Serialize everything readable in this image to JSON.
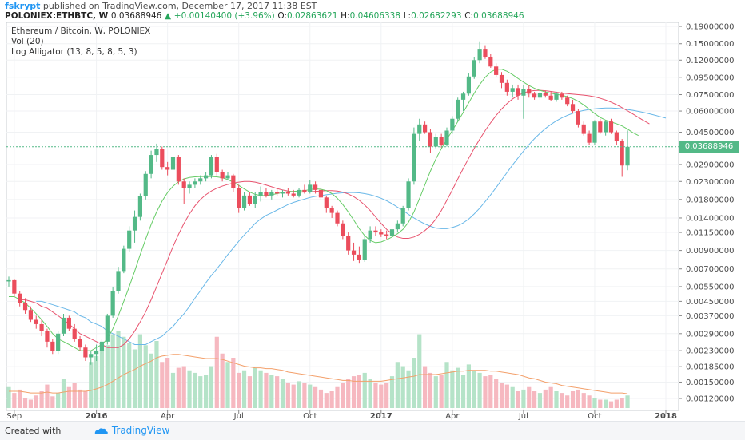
{
  "header": {
    "user": "fskrypt",
    "published_text": "published on TradingView.com, December 17, 2017 11:38 EST",
    "symbol": "POLONIEX:ETHBTC, W",
    "last": "0.03688946",
    "change": "+0.00140400 (+3.96%)",
    "open_label": "O:",
    "open": "0.02863621",
    "high_label": "H:",
    "high": "0.04606338",
    "low_label": "L:",
    "low": "0.02682293",
    "close_label": "C:",
    "close": "0.03688946"
  },
  "legend": {
    "title": "Ethereum / Bitcoin, W, POLONIEX",
    "vol": "Vol (20)",
    "alligator": "Log Alligator (13, 8, 5, 8, 5, 3)"
  },
  "price_tag": "0.03688946",
  "footer": {
    "created": "Created with",
    "brand": "TradingView"
  },
  "colors": {
    "up": "#53b987",
    "down": "#eb4d5c",
    "jaw": "#6ab8e8",
    "teeth": "#e8536e",
    "lips": "#66cc66",
    "vol_ma": "#f3a06b"
  },
  "chart_data": {
    "type": "candlestick",
    "scale": "log",
    "y_ticks": [
      "0.19000000",
      "0.15000000",
      "0.12000000",
      "0.09500000",
      "0.07500000",
      "0.06000000",
      "0.04500000",
      "0.03688946",
      "0.02900000",
      "0.02300000",
      "0.01800000",
      "0.01400000",
      "0.01150000",
      "0.00900000",
      "0.00700000",
      "0.00550000",
      "0.00450000",
      "0.00370000",
      "0.00290000",
      "0.00230000",
      "0.00185000",
      "0.00150000",
      "0.00120000"
    ],
    "y_tick_values": [
      0.19,
      0.15,
      0.12,
      0.095,
      0.075,
      0.06,
      0.045,
      0.03688946,
      0.029,
      0.023,
      0.018,
      0.014,
      0.0115,
      0.009,
      0.007,
      0.0055,
      0.0045,
      0.0037,
      0.0029,
      0.0023,
      0.00185,
      0.0015,
      0.0012
    ],
    "x_labels": [
      "Sep",
      "2016",
      "Apr",
      "Jul",
      "Oct",
      "2017",
      "Apr",
      "Jul",
      "Oct",
      "2018"
    ],
    "x_label_index": [
      1,
      16,
      29,
      42,
      55,
      68,
      81,
      94,
      107,
      120
    ],
    "ohlc": [
      [
        0.0059,
        0.0063,
        0.0055,
        0.006
      ],
      [
        0.006,
        0.0061,
        0.0048,
        0.005
      ],
      [
        0.005,
        0.0052,
        0.0042,
        0.0044
      ],
      [
        0.0044,
        0.0047,
        0.0038,
        0.004
      ],
      [
        0.004,
        0.0042,
        0.0034,
        0.0035
      ],
      [
        0.0035,
        0.0037,
        0.0031,
        0.0033
      ],
      [
        0.0033,
        0.0035,
        0.0028,
        0.003
      ],
      [
        0.003,
        0.0031,
        0.0024,
        0.0026
      ],
      [
        0.0026,
        0.0027,
        0.0022,
        0.0023
      ],
      [
        0.0023,
        0.003,
        0.0022,
        0.0029
      ],
      [
        0.0029,
        0.0038,
        0.0028,
        0.0036
      ],
      [
        0.0036,
        0.0037,
        0.003,
        0.0031
      ],
      [
        0.0031,
        0.0033,
        0.0026,
        0.0027
      ],
      [
        0.0027,
        0.0028,
        0.0023,
        0.0024
      ],
      [
        0.0024,
        0.0025,
        0.002,
        0.0021
      ],
      [
        0.0021,
        0.0023,
        0.0019,
        0.0022
      ],
      [
        0.0022,
        0.0025,
        0.002,
        0.0023
      ],
      [
        0.0023,
        0.0027,
        0.0022,
        0.0026
      ],
      [
        0.0026,
        0.0038,
        0.0025,
        0.0037
      ],
      [
        0.0037,
        0.0055,
        0.0036,
        0.0052
      ],
      [
        0.0052,
        0.0072,
        0.005,
        0.0068
      ],
      [
        0.0068,
        0.0096,
        0.0066,
        0.0092
      ],
      [
        0.0092,
        0.0125,
        0.0088,
        0.0118
      ],
      [
        0.0118,
        0.0155,
        0.01,
        0.0142
      ],
      [
        0.0142,
        0.0195,
        0.0135,
        0.0188
      ],
      [
        0.0188,
        0.0265,
        0.018,
        0.0255
      ],
      [
        0.0255,
        0.035,
        0.024,
        0.033
      ],
      [
        0.033,
        0.0385,
        0.03,
        0.036
      ],
      [
        0.036,
        0.037,
        0.027,
        0.028
      ],
      [
        0.028,
        0.03,
        0.025,
        0.027
      ],
      [
        0.027,
        0.033,
        0.026,
        0.032
      ],
      [
        0.032,
        0.033,
        0.022,
        0.023
      ],
      [
        0.023,
        0.024,
        0.017,
        0.021
      ],
      [
        0.021,
        0.023,
        0.0195,
        0.022
      ],
      [
        0.022,
        0.024,
        0.021,
        0.023
      ],
      [
        0.023,
        0.025,
        0.022,
        0.024
      ],
      [
        0.024,
        0.026,
        0.023,
        0.025
      ],
      [
        0.025,
        0.033,
        0.024,
        0.032
      ],
      [
        0.032,
        0.0335,
        0.025,
        0.026
      ],
      [
        0.026,
        0.027,
        0.023,
        0.024
      ],
      [
        0.024,
        0.026,
        0.0235,
        0.025
      ],
      [
        0.025,
        0.0255,
        0.02,
        0.021
      ],
      [
        0.021,
        0.022,
        0.015,
        0.016
      ],
      [
        0.016,
        0.02,
        0.0155,
        0.019
      ],
      [
        0.019,
        0.02,
        0.0165,
        0.017
      ],
      [
        0.017,
        0.02,
        0.016,
        0.019
      ],
      [
        0.019,
        0.0215,
        0.0175,
        0.02
      ],
      [
        0.02,
        0.021,
        0.0185,
        0.019
      ],
      [
        0.019,
        0.0205,
        0.018,
        0.02
      ],
      [
        0.02,
        0.021,
        0.019,
        0.0195
      ],
      [
        0.0195,
        0.0205,
        0.0185,
        0.02
      ],
      [
        0.02,
        0.021,
        0.019,
        0.0195
      ],
      [
        0.0195,
        0.0205,
        0.0185,
        0.019
      ],
      [
        0.019,
        0.021,
        0.0185,
        0.0205
      ],
      [
        0.0205,
        0.022,
        0.0195,
        0.02
      ],
      [
        0.02,
        0.0235,
        0.0195,
        0.022
      ],
      [
        0.022,
        0.023,
        0.0195,
        0.0205
      ],
      [
        0.0205,
        0.021,
        0.018,
        0.0185
      ],
      [
        0.0185,
        0.019,
        0.015,
        0.016
      ],
      [
        0.016,
        0.0165,
        0.014,
        0.015
      ],
      [
        0.015,
        0.0155,
        0.0125,
        0.013
      ],
      [
        0.013,
        0.0135,
        0.0105,
        0.011
      ],
      [
        0.011,
        0.0115,
        0.0085,
        0.009
      ],
      [
        0.009,
        0.01,
        0.0078,
        0.0085
      ],
      [
        0.0085,
        0.0095,
        0.0076,
        0.0079
      ],
      [
        0.0079,
        0.011,
        0.0077,
        0.0105
      ],
      [
        0.0105,
        0.0125,
        0.01,
        0.0118
      ],
      [
        0.0118,
        0.0125,
        0.011,
        0.0115
      ],
      [
        0.0115,
        0.012,
        0.0108,
        0.0112
      ],
      [
        0.0112,
        0.0118,
        0.0105,
        0.011
      ],
      [
        0.011,
        0.0123,
        0.0108,
        0.012
      ],
      [
        0.012,
        0.0135,
        0.0115,
        0.013
      ],
      [
        0.013,
        0.0165,
        0.0125,
        0.016
      ],
      [
        0.016,
        0.024,
        0.0155,
        0.023
      ],
      [
        0.023,
        0.048,
        0.022,
        0.044
      ],
      [
        0.044,
        0.054,
        0.04,
        0.05
      ],
      [
        0.05,
        0.052,
        0.044,
        0.045
      ],
      [
        0.045,
        0.047,
        0.034,
        0.037
      ],
      [
        0.037,
        0.044,
        0.036,
        0.042
      ],
      [
        0.042,
        0.044,
        0.0365,
        0.038
      ],
      [
        0.038,
        0.048,
        0.037,
        0.046
      ],
      [
        0.046,
        0.056,
        0.044,
        0.054
      ],
      [
        0.054,
        0.072,
        0.052,
        0.07
      ],
      [
        0.07,
        0.078,
        0.06,
        0.076
      ],
      [
        0.076,
        0.1,
        0.074,
        0.096
      ],
      [
        0.096,
        0.125,
        0.093,
        0.12
      ],
      [
        0.12,
        0.155,
        0.115,
        0.14
      ],
      [
        0.14,
        0.147,
        0.122,
        0.125
      ],
      [
        0.125,
        0.13,
        0.108,
        0.11
      ],
      [
        0.11,
        0.115,
        0.095,
        0.098
      ],
      [
        0.098,
        0.102,
        0.082,
        0.088
      ],
      [
        0.088,
        0.092,
        0.074,
        0.078
      ],
      [
        0.078,
        0.086,
        0.072,
        0.082
      ],
      [
        0.082,
        0.086,
        0.07,
        0.074
      ],
      [
        0.074,
        0.086,
        0.054,
        0.081
      ],
      [
        0.081,
        0.085,
        0.072,
        0.076
      ],
      [
        0.076,
        0.078,
        0.07,
        0.072
      ],
      [
        0.072,
        0.079,
        0.07,
        0.077
      ],
      [
        0.077,
        0.079,
        0.072,
        0.074
      ],
      [
        0.074,
        0.078,
        0.069,
        0.07
      ],
      [
        0.07,
        0.078,
        0.068,
        0.076
      ],
      [
        0.076,
        0.078,
        0.07,
        0.072
      ],
      [
        0.072,
        0.074,
        0.064,
        0.066
      ],
      [
        0.066,
        0.07,
        0.058,
        0.06
      ],
      [
        0.06,
        0.062,
        0.048,
        0.05
      ],
      [
        0.05,
        0.052,
        0.043,
        0.044
      ],
      [
        0.044,
        0.046,
        0.038,
        0.039
      ],
      [
        0.039,
        0.053,
        0.038,
        0.052
      ],
      [
        0.052,
        0.054,
        0.044,
        0.045
      ],
      [
        0.045,
        0.053,
        0.043,
        0.052
      ],
      [
        0.052,
        0.054,
        0.044,
        0.045
      ],
      [
        0.045,
        0.046,
        0.038,
        0.04
      ],
      [
        0.04,
        0.041,
        0.0245,
        0.0286
      ],
      [
        0.0286,
        0.0461,
        0.0268,
        0.0369
      ]
    ],
    "jaw": [
      0.0045,
      0.0045,
      0.0044,
      0.0043,
      0.0042,
      0.0041,
      0.004,
      0.0039,
      0.0037,
      0.0036,
      0.0034,
      0.0033,
      0.0032,
      0.003,
      0.0029,
      0.0028,
      0.0027,
      0.0026,
      0.0025,
      0.0025,
      0.0025,
      0.0026,
      0.0027,
      0.0028,
      0.003,
      0.0032,
      0.0035,
      0.0038,
      0.0042,
      0.0047,
      0.0052,
      0.0058,
      0.0064,
      0.007,
      0.0077,
      0.0085,
      0.0093,
      0.0102,
      0.0111,
      0.012,
      0.013,
      0.0138,
      0.0145,
      0.015,
      0.0156,
      0.0162,
      0.0168,
      0.0173,
      0.0177,
      0.0181,
      0.0185,
      0.0188,
      0.019,
      0.0192,
      0.0194,
      0.0196,
      0.0197,
      0.0198,
      0.0198,
      0.0197,
      0.0195,
      0.0192,
      0.0188,
      0.0183,
      0.0177,
      0.017,
      0.0162,
      0.0155,
      0.0147,
      0.014,
      0.0134,
      0.0129,
      0.0125,
      0.0122,
      0.0121,
      0.0121,
      0.0123,
      0.0126,
      0.0131,
      0.0138,
      0.0148,
      0.016,
      0.0175,
      0.0192,
      0.0212,
      0.0235,
      0.026,
      0.0288,
      0.0317,
      0.0348,
      0.038,
      0.0412,
      0.0443,
      0.0473,
      0.05,
      0.0525,
      0.0547,
      0.0566,
      0.0582,
      0.0595,
      0.0605,
      0.0613,
      0.0619,
      0.0623,
      0.0625,
      0.0625,
      0.0623,
      0.0619,
      0.0613,
      0.0606,
      0.0597,
      0.0588,
      0.0578,
      0.0567,
      0.0556,
      0.0545
    ],
    "teeth": [
      0.0046,
      0.0046,
      0.0045,
      0.0044,
      0.0042,
      0.0041,
      0.0039,
      0.0037,
      0.0035,
      0.0033,
      0.0031,
      0.0029,
      0.0028,
      0.0027,
      0.0026,
      0.0025,
      0.0024,
      0.0024,
      0.0024,
      0.0025,
      0.0027,
      0.003,
      0.0034,
      0.0039,
      0.0046,
      0.0055,
      0.0066,
      0.0079,
      0.0095,
      0.0112,
      0.013,
      0.0148,
      0.0165,
      0.018,
      0.0192,
      0.0202,
      0.021,
      0.0216,
      0.0221,
      0.0225,
      0.0228,
      0.023,
      0.023,
      0.0228,
      0.0224,
      0.0219,
      0.0214,
      0.0209,
      0.0205,
      0.0202,
      0.02,
      0.0199,
      0.0199,
      0.02,
      0.0201,
      0.0202,
      0.0203,
      0.0203,
      0.0202,
      0.0199,
      0.0194,
      0.0187,
      0.0178,
      0.0167,
      0.0155,
      0.0142,
      0.013,
      0.012,
      0.0113,
      0.0108,
      0.0106,
      0.0106,
      0.0108,
      0.0112,
      0.0118,
      0.0126,
      0.0138,
      0.0155,
      0.0178,
      0.0205,
      0.0238,
      0.0275,
      0.0316,
      0.0361,
      0.0409,
      0.046,
      0.0512,
      0.0565,
      0.0617,
      0.0665,
      0.0707,
      0.0742,
      0.0768,
      0.0785,
      0.0793,
      0.0795,
      0.0791,
      0.0784,
      0.0775,
      0.0767,
      0.076,
      0.0755,
      0.075,
      0.0745,
      0.0738,
      0.0728,
      0.0714,
      0.0697,
      0.0677,
      0.0654,
      0.0628,
      0.0602,
      0.0576,
      0.055,
      0.0526,
      0.0504
    ],
    "lips": [
      0.0048,
      0.0048,
      0.0046,
      0.0044,
      0.0041,
      0.0038,
      0.0035,
      0.0032,
      0.0029,
      0.0027,
      0.0026,
      0.0025,
      0.0024,
      0.0023,
      0.0023,
      0.0023,
      0.0024,
      0.0025,
      0.0027,
      0.0031,
      0.0037,
      0.0045,
      0.0055,
      0.0068,
      0.0085,
      0.0105,
      0.0128,
      0.0152,
      0.0176,
      0.0198,
      0.0216,
      0.0229,
      0.0238,
      0.0243,
      0.0245,
      0.0246,
      0.0246,
      0.0246,
      0.0245,
      0.0242,
      0.0236,
      0.0228,
      0.0218,
      0.0208,
      0.0199,
      0.0193,
      0.019,
      0.019,
      0.0192,
      0.0195,
      0.0198,
      0.02,
      0.0201,
      0.0202,
      0.0203,
      0.0206,
      0.0208,
      0.0207,
      0.0203,
      0.0195,
      0.0183,
      0.0168,
      0.0152,
      0.0136,
      0.0121,
      0.011,
      0.0103,
      0.01,
      0.0101,
      0.0104,
      0.0108,
      0.0113,
      0.012,
      0.0132,
      0.0152,
      0.0182,
      0.022,
      0.0265,
      0.0313,
      0.036,
      0.0408,
      0.046,
      0.052,
      0.059,
      0.0672,
      0.0765,
      0.086,
      0.095,
      0.102,
      0.106,
      0.106,
      0.103,
      0.0985,
      0.0935,
      0.089,
      0.085,
      0.0818,
      0.0795,
      0.0778,
      0.0765,
      0.0754,
      0.0743,
      0.073,
      0.0711,
      0.0685,
      0.0652,
      0.0615,
      0.058,
      0.055,
      0.053,
      0.0517,
      0.0505,
      0.049,
      0.047,
      0.0447,
      0.043
    ],
    "volume": [
      0.25,
      0.18,
      0.22,
      0.12,
      0.1,
      0.15,
      0.2,
      0.28,
      0.14,
      0.18,
      0.35,
      0.25,
      0.3,
      0.22,
      0.2,
      0.55,
      0.62,
      0.7,
      0.75,
      0.88,
      0.92,
      0.85,
      0.78,
      0.7,
      0.88,
      0.75,
      0.65,
      0.8,
      0.55,
      0.6,
      0.42,
      0.48,
      0.5,
      0.45,
      0.42,
      0.38,
      0.4,
      0.5,
      0.85,
      0.65,
      0.55,
      0.6,
      0.42,
      0.45,
      0.38,
      0.48,
      0.45,
      0.42,
      0.4,
      0.38,
      0.35,
      0.3,
      0.28,
      0.32,
      0.3,
      0.28,
      0.25,
      0.22,
      0.18,
      0.2,
      0.25,
      0.3,
      0.35,
      0.38,
      0.4,
      0.42,
      0.35,
      0.3,
      0.28,
      0.3,
      0.38,
      0.55,
      0.5,
      0.45,
      0.6,
      0.88,
      0.5,
      0.42,
      0.38,
      0.4,
      0.55,
      0.45,
      0.48,
      0.4,
      0.52,
      0.45,
      0.42,
      0.38,
      0.4,
      0.35,
      0.3,
      0.28,
      0.25,
      0.2,
      0.22,
      0.25,
      0.2,
      0.18,
      0.22,
      0.25,
      0.2,
      0.18,
      0.15,
      0.2,
      0.22,
      0.18,
      0.15,
      0.12,
      0.1,
      0.1,
      0.08,
      0.1,
      0.12,
      0.15
    ],
    "vol_ma": [
      0.2,
      0.2,
      0.2,
      0.19,
      0.18,
      0.18,
      0.18,
      0.19,
      0.18,
      0.18,
      0.19,
      0.2,
      0.2,
      0.2,
      0.2,
      0.21,
      0.23,
      0.25,
      0.28,
      0.32,
      0.36,
      0.4,
      0.43,
      0.46,
      0.5,
      0.53,
      0.56,
      0.6,
      0.62,
      0.63,
      0.64,
      0.64,
      0.63,
      0.62,
      0.61,
      0.6,
      0.59,
      0.59,
      0.59,
      0.58,
      0.56,
      0.54,
      0.52,
      0.5,
      0.49,
      0.48,
      0.48,
      0.47,
      0.47,
      0.46,
      0.45,
      0.43,
      0.42,
      0.41,
      0.4,
      0.39,
      0.38,
      0.37,
      0.36,
      0.35,
      0.34,
      0.33,
      0.33,
      0.32,
      0.32,
      0.32,
      0.32,
      0.32,
      0.32,
      0.33,
      0.34,
      0.35,
      0.36,
      0.37,
      0.38,
      0.4,
      0.4,
      0.4,
      0.4,
      0.41,
      0.42,
      0.43,
      0.44,
      0.44,
      0.45,
      0.45,
      0.45,
      0.45,
      0.44,
      0.44,
      0.43,
      0.42,
      0.41,
      0.4,
      0.38,
      0.36,
      0.35,
      0.33,
      0.31,
      0.3,
      0.29,
      0.27,
      0.26,
      0.25,
      0.24,
      0.23,
      0.22,
      0.21,
      0.2,
      0.19,
      0.18,
      0.18,
      0.18,
      0.17
    ]
  }
}
